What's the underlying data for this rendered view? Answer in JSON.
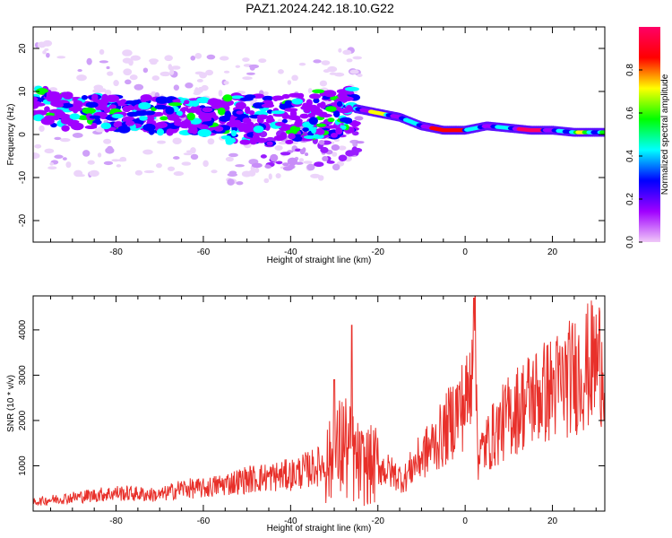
{
  "title": "PAZ1.2024.242.18.10.G22",
  "colors": {
    "snr_line": "#e8302a",
    "axis": "#000000",
    "colorbar_stops": [
      "#f0c8f8",
      "#a000ff",
      "#0000ff",
      "#00ffff",
      "#00ff00",
      "#ffff00",
      "#ff0000",
      "#ff0066"
    ]
  },
  "chart_data": [
    {
      "type": "heatmap",
      "title": "",
      "xlabel": "Height of straight line (km)",
      "ylabel": "Frequency (Hz)",
      "xlim": [
        -99,
        32
      ],
      "ylim": [
        -25,
        25
      ],
      "xticks": [
        -80,
        -60,
        -40,
        -20,
        0,
        20
      ],
      "yticks": [
        -20,
        -10,
        0,
        10,
        20
      ],
      "xtick_labels": [
        "-80",
        "-60",
        "-40",
        "-20",
        "0",
        "20"
      ],
      "ytick_labels": [
        "-20",
        "-10",
        "0",
        "10",
        "20"
      ],
      "colorbar": {
        "label": "Normalized spectral amplitude",
        "range": [
          0.0,
          1.0
        ],
        "ticks": [
          0.0,
          0.2,
          0.4,
          0.6,
          0.8
        ],
        "tick_labels": [
          "0.0",
          "0.2",
          "0.4",
          "0.6",
          "0.8"
        ]
      },
      "ridge": {
        "x": [
          -98,
          -90,
          -80,
          -70,
          -60,
          -50,
          -40,
          -30,
          -25,
          -20,
          -15,
          -10,
          -5,
          0,
          5,
          10,
          15,
          20,
          25,
          32
        ],
        "y": [
          7,
          5,
          5,
          4.5,
          4,
          3.5,
          3.5,
          5,
          6,
          5,
          4,
          2,
          1,
          1,
          2,
          1.5,
          1,
          1,
          0.5,
          0.5
        ]
      }
    },
    {
      "type": "line",
      "title": "",
      "xlabel": "Height of straight line (km)",
      "ylabel": "SNR (10 * v/v)",
      "xlim": [
        -99,
        32
      ],
      "ylim": [
        0,
        4750
      ],
      "xticks": [
        -80,
        -60,
        -40,
        -20,
        0,
        20
      ],
      "yticks": [
        1000,
        2000,
        3000,
        4000
      ],
      "xtick_labels": [
        "-80",
        "-60",
        "-40",
        "-20",
        "0",
        "20"
      ],
      "ytick_labels": [
        "1000",
        "2000",
        "3000",
        "4000"
      ],
      "series": [
        {
          "x": [
            -99,
            -95,
            -90,
            -85,
            -80,
            -75,
            -70,
            -65,
            -60,
            -55,
            -50,
            -45,
            -40,
            -35,
            -30,
            -28,
            -26,
            -24,
            -20,
            -16,
            -14,
            -12,
            -10,
            -5,
            -2,
            0,
            1,
            2,
            3,
            5,
            10,
            15,
            20,
            25,
            30,
            32
          ],
          "y": [
            200,
            250,
            300,
            350,
            400,
            380,
            350,
            500,
            500,
            600,
            700,
            750,
            800,
            950,
            1100,
            1500,
            1200,
            1000,
            1000,
            800,
            700,
            1000,
            1200,
            1700,
            2200,
            2400,
            2600,
            4600,
            1200,
            1500,
            2100,
            2500,
            2700,
            3000,
            3300,
            3400
          ]
        }
      ]
    }
  ]
}
